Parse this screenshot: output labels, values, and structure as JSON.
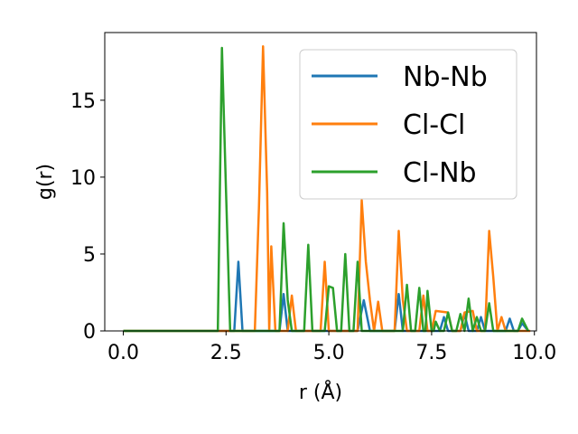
{
  "chart_data": {
    "type": "line",
    "xlabel": "r (Å)",
    "ylabel": "g(r)",
    "xlim": [
      -0.45,
      10.05
    ],
    "ylim": [
      0,
      19.4
    ],
    "xticks": [
      0.0,
      2.5,
      5.0,
      7.5,
      10.0
    ],
    "xtick_labels": [
      "0.0",
      "2.5",
      "5.0",
      "7.5",
      "10.0"
    ],
    "yticks": [
      0,
      5,
      10,
      15
    ],
    "ytick_labels": [
      "0",
      "5",
      "10",
      "15"
    ],
    "grid": false,
    "legend_position": "top-right",
    "series": [
      {
        "name": "Nb-Nb",
        "color": "#1f77b4",
        "points": [
          [
            0.0,
            0
          ],
          [
            2.7,
            0
          ],
          [
            2.8,
            4.5
          ],
          [
            2.9,
            0
          ],
          [
            3.8,
            0
          ],
          [
            3.9,
            2.4
          ],
          [
            4.0,
            0
          ],
          [
            5.7,
            0
          ],
          [
            5.85,
            2.0
          ],
          [
            6.0,
            0
          ],
          [
            6.6,
            0
          ],
          [
            6.7,
            2.4
          ],
          [
            6.8,
            0
          ],
          [
            7.7,
            0
          ],
          [
            7.8,
            0.9
          ],
          [
            7.9,
            0
          ],
          [
            8.2,
            0
          ],
          [
            8.3,
            1.1
          ],
          [
            8.4,
            0
          ],
          [
            8.6,
            0
          ],
          [
            8.7,
            0.9
          ],
          [
            8.8,
            0
          ],
          [
            9.3,
            0
          ],
          [
            9.4,
            0.8
          ],
          [
            9.5,
            0
          ],
          [
            9.6,
            0
          ],
          [
            9.7,
            0.5
          ],
          [
            9.85,
            0
          ]
        ]
      },
      {
        "name": "Cl-Cl",
        "color": "#ff7f0e",
        "points": [
          [
            0.0,
            0
          ],
          [
            3.2,
            0
          ],
          [
            3.3,
            8.0
          ],
          [
            3.4,
            18.5
          ],
          [
            3.5,
            9.0
          ],
          [
            3.55,
            0
          ],
          [
            3.6,
            5.5
          ],
          [
            3.7,
            0
          ],
          [
            4.0,
            0
          ],
          [
            4.1,
            2.3
          ],
          [
            4.2,
            0
          ],
          [
            4.8,
            0
          ],
          [
            4.9,
            4.5
          ],
          [
            5.0,
            0
          ],
          [
            5.7,
            0
          ],
          [
            5.8,
            8.5
          ],
          [
            5.9,
            4.5
          ],
          [
            6.0,
            2.0
          ],
          [
            6.1,
            0
          ],
          [
            6.2,
            1.9
          ],
          [
            6.3,
            0
          ],
          [
            6.6,
            0
          ],
          [
            6.7,
            6.5
          ],
          [
            6.8,
            2.0
          ],
          [
            6.9,
            0
          ],
          [
            7.2,
            0
          ],
          [
            7.3,
            2.3
          ],
          [
            7.4,
            0
          ],
          [
            7.5,
            0
          ],
          [
            7.6,
            1.3
          ],
          [
            7.9,
            1.2
          ],
          [
            8.0,
            0
          ],
          [
            8.2,
            0
          ],
          [
            8.3,
            1.2
          ],
          [
            8.5,
            1.3
          ],
          [
            8.6,
            0
          ],
          [
            8.8,
            0
          ],
          [
            8.9,
            6.5
          ],
          [
            9.0,
            3.5
          ],
          [
            9.1,
            0
          ],
          [
            9.2,
            0.9
          ],
          [
            9.3,
            0
          ],
          [
            9.9,
            0
          ]
        ]
      },
      {
        "name": "Cl-Nb",
        "color": "#2ca02c",
        "points": [
          [
            0.0,
            0
          ],
          [
            2.3,
            0
          ],
          [
            2.4,
            18.4
          ],
          [
            2.5,
            9.0
          ],
          [
            2.6,
            0
          ],
          [
            3.8,
            0
          ],
          [
            3.9,
            7.0
          ],
          [
            4.0,
            2.0
          ],
          [
            4.1,
            0
          ],
          [
            4.4,
            0
          ],
          [
            4.5,
            5.6
          ],
          [
            4.6,
            0
          ],
          [
            4.9,
            0
          ],
          [
            5.0,
            2.9
          ],
          [
            5.1,
            2.8
          ],
          [
            5.2,
            0
          ],
          [
            5.3,
            0
          ],
          [
            5.4,
            5.0
          ],
          [
            5.5,
            0
          ],
          [
            5.6,
            0
          ],
          [
            5.7,
            4.5
          ],
          [
            5.8,
            0
          ],
          [
            6.8,
            0
          ],
          [
            6.9,
            3.0
          ],
          [
            7.0,
            0
          ],
          [
            7.1,
            0
          ],
          [
            7.2,
            2.8
          ],
          [
            7.3,
            0
          ],
          [
            7.35,
            0
          ],
          [
            7.4,
            2.6
          ],
          [
            7.5,
            0
          ],
          [
            7.55,
            0
          ],
          [
            7.6,
            0.6
          ],
          [
            7.7,
            0
          ],
          [
            7.8,
            0
          ],
          [
            7.9,
            1.2
          ],
          [
            8.0,
            0
          ],
          [
            8.1,
            0
          ],
          [
            8.2,
            1.1
          ],
          [
            8.3,
            0
          ],
          [
            8.4,
            2.1
          ],
          [
            8.5,
            0
          ],
          [
            8.6,
            0.9
          ],
          [
            8.7,
            0
          ],
          [
            8.8,
            0
          ],
          [
            8.9,
            1.8
          ],
          [
            9.0,
            0
          ],
          [
            9.6,
            0
          ],
          [
            9.7,
            0.8
          ],
          [
            9.85,
            0
          ]
        ]
      }
    ]
  }
}
